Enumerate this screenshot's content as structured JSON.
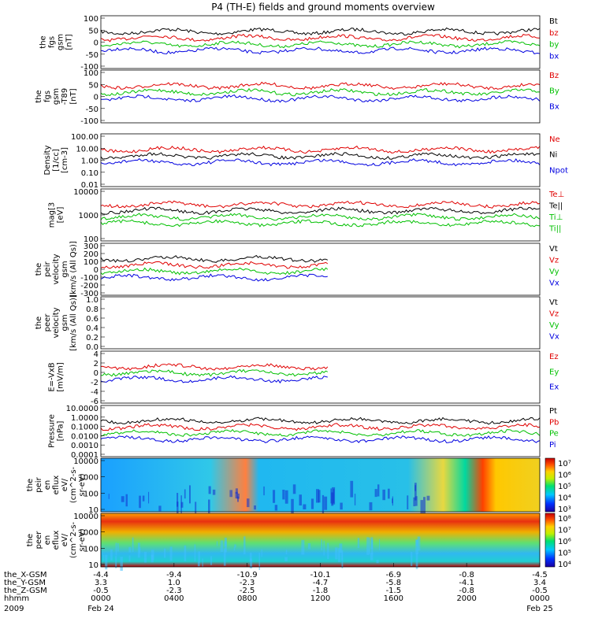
{
  "title": "P4 (TH-E) fields and ground moments overview",
  "chart_data": {
    "type": "line",
    "x_ticks": [
      "0000",
      "0400",
      "0800",
      "1200",
      "1600",
      "2000",
      "0000"
    ],
    "date_labels": [
      "Feb 24",
      "Feb 25"
    ],
    "year": "2009",
    "ephemeris": [
      {
        "name": "the_X-GSM",
        "values": [
          "-4.4",
          "-9.4",
          "-10.9",
          "-10.1",
          "-6.9",
          "-0.8",
          "-4.5"
        ]
      },
      {
        "name": "the_Y-GSM",
        "values": [
          "3.3",
          "1.0",
          "-2.3",
          "-4.7",
          "-5.8",
          "-4.1",
          "3.4"
        ]
      },
      {
        "name": "the_Z-GSM",
        "values": [
          "-0.5",
          "-2.3",
          "-2.5",
          "-1.8",
          "-1.5",
          "-0.8",
          "-0.5"
        ]
      },
      {
        "name": "hhmm",
        "values": [
          "0000",
          "0400",
          "0800",
          "1200",
          "1600",
          "2000",
          "0000"
        ]
      }
    ],
    "ephemeris_year": "2009",
    "panels": [
      {
        "id": "fgs",
        "ylabel": [
          "the",
          "fgs",
          "gsm",
          "[nT]"
        ],
        "yticks": [
          "100",
          "50",
          "0",
          "-50",
          "-100"
        ],
        "series": [
          {
            "name": "Bt",
            "color": "#000000"
          },
          {
            "name": "bz",
            "color": "#e00000"
          },
          {
            "name": "by",
            "color": "#00c000"
          },
          {
            "name": "bx",
            "color": "#0000e0"
          }
        ]
      },
      {
        "id": "fgs-t89",
        "ylabel": [
          "the",
          "fgs",
          "gsm",
          "-T89",
          "[nT]"
        ],
        "yticks": [
          "100",
          "50",
          "0",
          "-50",
          "-100"
        ],
        "series": [
          {
            "name": "Bz",
            "color": "#e00000"
          },
          {
            "name": "By",
            "color": "#00c000"
          },
          {
            "name": "Bx",
            "color": "#0000e0"
          }
        ]
      },
      {
        "id": "density",
        "ylabel": [
          "Density",
          "[1/cc]",
          "[cm-3]"
        ],
        "yticks": [
          "100.00",
          "10.00",
          "1.00",
          "0.10",
          "0.01"
        ],
        "scale": "log",
        "series": [
          {
            "name": "Ne",
            "color": "#e00000"
          },
          {
            "name": "Ni",
            "color": "#000000"
          },
          {
            "name": "Npot",
            "color": "#0000e0"
          }
        ]
      },
      {
        "id": "temperature",
        "ylabel": [
          "mag[3",
          "[eV]"
        ],
        "yticks": [
          "10000",
          "1000",
          "100"
        ],
        "scale": "log",
        "series": [
          {
            "name": "Te⊥",
            "color": "#e00000"
          },
          {
            "name": "Te||",
            "color": "#000000"
          },
          {
            "name": "Ti⊥",
            "color": "#00c000"
          },
          {
            "name": "Ti||",
            "color": "#00c000"
          }
        ]
      },
      {
        "id": "peir-velocity",
        "ylabel": [
          "the",
          "peir",
          "velocity",
          "gsm",
          "[km/s (All Qs)]"
        ],
        "yticks": [
          "300",
          "200",
          "100",
          "0",
          "-100",
          "-200",
          "-300"
        ],
        "series": [
          {
            "name": "Vt",
            "color": "#000000"
          },
          {
            "name": "Vz",
            "color": "#e00000"
          },
          {
            "name": "Vy",
            "color": "#00c000"
          },
          {
            "name": "Vx",
            "color": "#0000e0"
          }
        ]
      },
      {
        "id": "peer-velocity",
        "ylabel": [
          "the",
          "peer",
          "velocity",
          "gsm",
          "[km/s (All Qs)]"
        ],
        "yticks": [
          "1.0",
          "0.8",
          "0.6",
          "0.4",
          "0.2",
          "0.0"
        ],
        "series": [
          {
            "name": "Vt",
            "color": "#000000"
          },
          {
            "name": "Vz",
            "color": "#e00000"
          },
          {
            "name": "Vy",
            "color": "#00c000"
          },
          {
            "name": "Vx",
            "color": "#0000e0"
          }
        ]
      },
      {
        "id": "efield",
        "ylabel": [
          "E=-VxB",
          "[mV/m]"
        ],
        "yticks": [
          "4",
          "2",
          "0",
          "-2",
          "-4",
          "-6"
        ],
        "series": [
          {
            "name": "Ez",
            "color": "#e00000"
          },
          {
            "name": "Ey",
            "color": "#00c000"
          },
          {
            "name": "Ex",
            "color": "#0000e0"
          }
        ]
      },
      {
        "id": "pressure",
        "ylabel": [
          "Pressure",
          "[nPa]"
        ],
        "yticks": [
          "10.0000",
          "1.0000",
          "0.1000",
          "0.0100",
          "0.0010",
          "0.0001"
        ],
        "scale": "log",
        "series": [
          {
            "name": "Pt",
            "color": "#000000"
          },
          {
            "name": "Pb",
            "color": "#e00000"
          },
          {
            "name": "Pe",
            "color": "#00c000"
          },
          {
            "name": "Pi",
            "color": "#0000e0"
          }
        ]
      },
      {
        "id": "peir-eflux",
        "ylabel": [
          "the",
          "peir",
          "en",
          "eflux",
          "eV/",
          "(cm^2-s-",
          "sr-eV)"
        ],
        "yticks": [
          "10000",
          "1000",
          "100",
          "10"
        ],
        "colorbar": [
          "10⁷",
          "10⁶",
          "10⁵",
          "10⁴",
          "10³"
        ],
        "type": "heatmap"
      },
      {
        "id": "peer-eflux",
        "ylabel": [
          "the",
          "peer",
          "en",
          "eflux",
          "eV/",
          "(cm^2-s-",
          "sr-eV)"
        ],
        "yticks": [
          "10000",
          "1000",
          "100",
          "10"
        ],
        "colorbar": [
          "10⁸",
          "10⁷",
          "10⁶",
          "10⁵",
          "10⁴"
        ],
        "type": "heatmap"
      }
    ]
  }
}
